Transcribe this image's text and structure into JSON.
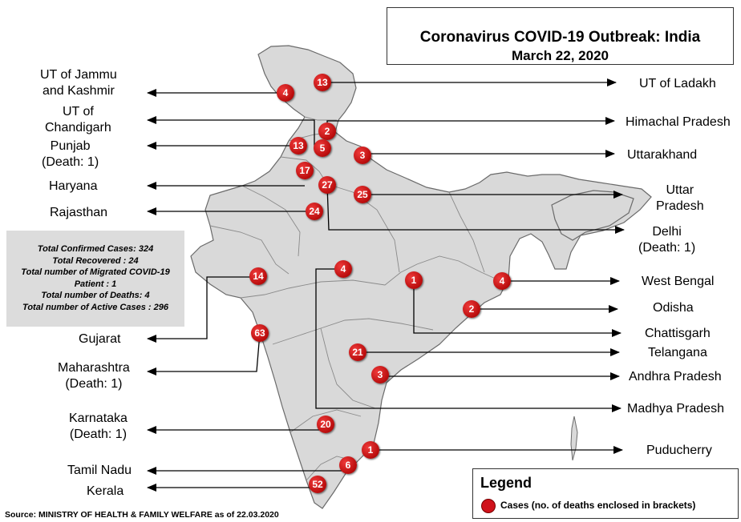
{
  "title": {
    "main": "Coronavirus COVID-19 Outbreak: India",
    "date": "March 22, 2020"
  },
  "stats": {
    "line1": "Total Confirmed Cases: 324",
    "line2": "Total Recovered : 24",
    "line3": "Total number of Migrated COVID-19",
    "line4": "Patient : 1",
    "line5": "Total number of Deaths: 4",
    "line6": "Total number of Active  Cases : 296"
  },
  "source": "Source: MINISTRY OF HEALTH & FAMILY WELFARE as of 22.03.2020",
  "legend": {
    "title": "Legend",
    "item": "Cases (no. of deaths enclosed in brackets)",
    "marker_color": "#d0121b"
  },
  "colors": {
    "land": "#d9d9d9",
    "border": "#555555",
    "marker": "#d0121b"
  },
  "regions": {
    "jk": {
      "label1": "UT of Jammu",
      "label2": "and Kashmir",
      "cases": "4"
    },
    "ladakh": {
      "label": "UT of Ladakh",
      "cases": "13"
    },
    "chandigarh": {
      "label1": "UT of",
      "label2": "Chandigarh",
      "cases": "5"
    },
    "himachal": {
      "label": "Himachal Pradesh",
      "cases": "2"
    },
    "punjab": {
      "label1": "Punjab",
      "label2": "(Death: 1)",
      "cases": "13"
    },
    "uttarakhand": {
      "label": "Uttarakhand",
      "cases": "3"
    },
    "haryana": {
      "label": "Haryana",
      "cases": "17"
    },
    "uttar_pradesh": {
      "label1": "Uttar",
      "label2": "Pradesh",
      "cases": "25"
    },
    "rajasthan": {
      "label": "Rajasthan",
      "cases": "24"
    },
    "delhi": {
      "label1": "Delhi",
      "label2": "(Death: 1)",
      "cases": "27"
    },
    "gujarat": {
      "label": "Gujarat",
      "cases": "14"
    },
    "west_bengal": {
      "label": "West Bengal",
      "cases": "4"
    },
    "odisha": {
      "label": "Odisha",
      "cases": "2"
    },
    "chattisgarh": {
      "label": "Chattisgarh",
      "cases": "1"
    },
    "maharashtra": {
      "label1": "Maharashtra",
      "label2": "(Death: 1)",
      "cases": "63"
    },
    "telangana": {
      "label": "Telangana",
      "cases": "21"
    },
    "andhra": {
      "label": "Andhra Pradesh",
      "cases": "3"
    },
    "madhya_pradesh": {
      "label": "Madhya Pradesh",
      "cases": "4"
    },
    "karnataka": {
      "label1": "Karnataka",
      "label2": "(Death: 1)",
      "cases": "20"
    },
    "puducherry": {
      "label": "Puducherry",
      "cases": "1"
    },
    "tamil_nadu": {
      "label": "Tamil Nadu",
      "cases": "6"
    },
    "kerala": {
      "label": "Kerala",
      "cases": "52"
    }
  }
}
